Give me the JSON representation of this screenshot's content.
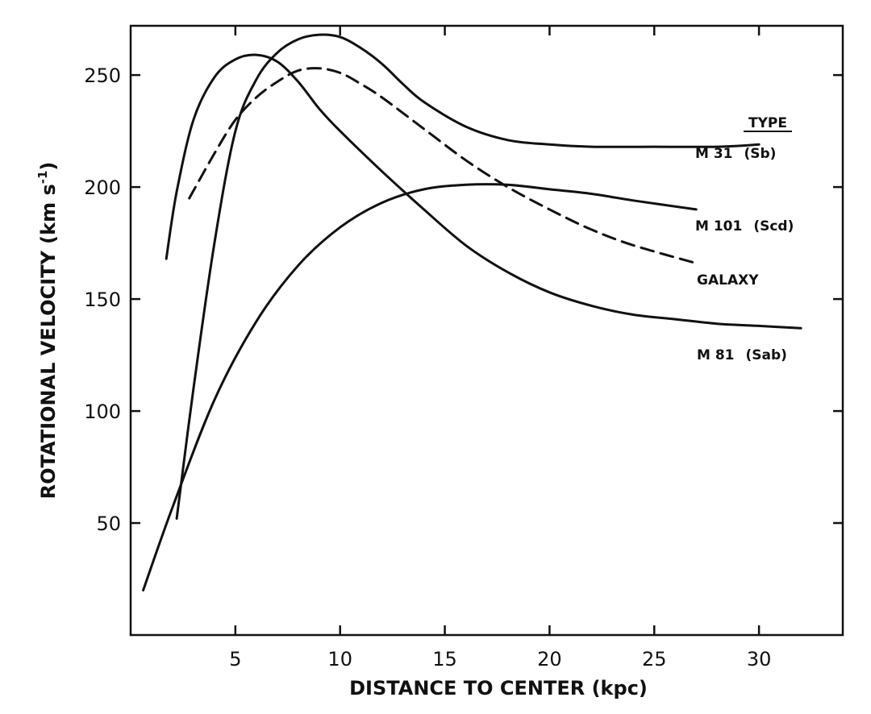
{
  "chart_data": {
    "type": "line",
    "title": "",
    "xlabel": "DISTANCE TO CENTER (kpc)",
    "ylabel_main": "ROTATIONAL VELOCITY (km s",
    "ylabel_sup": "-1",
    "ylabel_close": ")",
    "xlim": [
      0,
      34
    ],
    "ylim": [
      0,
      272
    ],
    "x_ticks": [
      5,
      10,
      15,
      20,
      25,
      30
    ],
    "y_ticks": [
      50,
      100,
      150,
      200,
      250
    ],
    "grid": false,
    "legend_title": "TYPE",
    "line_color": "#111111",
    "series": [
      {
        "name": "M 31",
        "type_label": "(Sb)",
        "dashed": false,
        "x": [
          2.2,
          3,
          4,
          5,
          6,
          7,
          8,
          9,
          10,
          11,
          12,
          13,
          14,
          16,
          18,
          20,
          22,
          25,
          28,
          30
        ],
        "y": [
          52,
          110,
          175,
          225,
          248,
          260,
          266,
          268,
          267,
          262,
          255,
          246,
          238,
          227,
          221,
          219,
          218,
          218,
          218,
          219
        ]
      },
      {
        "name": "M 101",
        "type_label": "(Scd)",
        "dashed": false,
        "x": [
          0.6,
          2,
          4,
          6,
          8,
          10,
          12,
          14,
          16,
          18,
          20,
          22,
          24,
          27
        ],
        "y": [
          20,
          57,
          105,
          140,
          165,
          182,
          193,
          199,
          201,
          201,
          199,
          197,
          194,
          190
        ]
      },
      {
        "name": "GALAXY",
        "type_label": "",
        "dashed": true,
        "x": [
          2.8,
          4,
          5,
          6,
          7,
          8,
          9,
          10,
          11,
          12,
          14,
          16,
          18,
          20,
          22,
          24,
          27
        ],
        "y": [
          195,
          215,
          230,
          240,
          247,
          252,
          253,
          251,
          246,
          240,
          226,
          212,
          200,
          190,
          181,
          174,
          166
        ]
      },
      {
        "name": "M 81",
        "type_label": "(Sab)",
        "dashed": false,
        "x": [
          1.7,
          2.2,
          3,
          4,
          5,
          6,
          7,
          8,
          9,
          10,
          12,
          14,
          16,
          18,
          20,
          22,
          24,
          26,
          28,
          30,
          32
        ],
        "y": [
          168,
          198,
          230,
          249,
          257,
          259,
          256,
          247,
          235,
          225,
          207,
          190,
          174,
          162,
          153,
          147,
          143,
          141,
          139,
          138,
          137
        ]
      }
    ]
  }
}
